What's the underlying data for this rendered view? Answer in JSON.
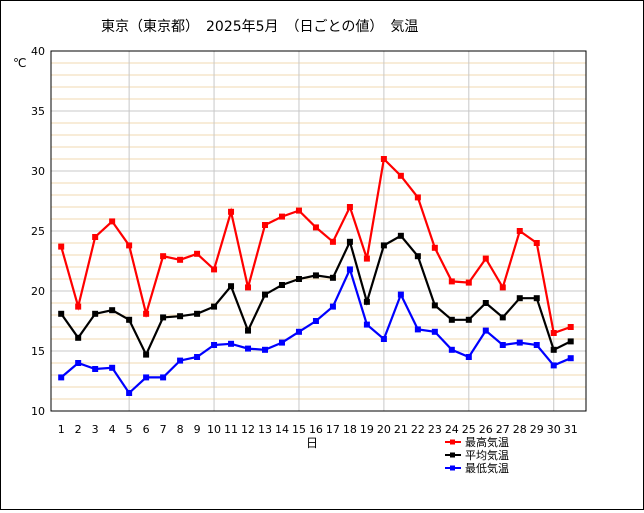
{
  "chart_data": {
    "type": "line",
    "title": "東京（東京都）　2025年5月　（日ごとの値）　気温",
    "ylabel": "℃",
    "xlabel": "日",
    "ylim": [
      10,
      40
    ],
    "yticks": [
      10,
      15,
      20,
      25,
      30,
      35,
      40
    ],
    "grid": true,
    "legend_position": "bottom-right",
    "x": [
      1,
      2,
      3,
      4,
      5,
      6,
      7,
      8,
      9,
      10,
      11,
      12,
      13,
      14,
      15,
      16,
      17,
      18,
      19,
      20,
      21,
      22,
      23,
      24,
      25,
      26,
      27,
      28,
      29,
      30,
      31
    ],
    "series": [
      {
        "name": "最高気温",
        "color": "#ff0000",
        "values": [
          23.7,
          18.7,
          24.5,
          25.8,
          23.8,
          18.1,
          22.9,
          22.6,
          23.1,
          21.8,
          26.6,
          20.3,
          25.5,
          26.2,
          26.7,
          25.3,
          24.1,
          27.0,
          22.7,
          31.0,
          29.6,
          27.8,
          23.6,
          20.8,
          20.7,
          22.7,
          20.3,
          25.0,
          24.0,
          16.5,
          17.0
        ]
      },
      {
        "name": "平均気温",
        "color": "#000000",
        "values": [
          18.1,
          16.1,
          18.1,
          18.4,
          17.6,
          14.7,
          17.8,
          17.9,
          18.1,
          18.7,
          20.4,
          16.7,
          19.7,
          20.5,
          21.0,
          21.3,
          21.1,
          24.1,
          19.1,
          23.8,
          24.6,
          22.9,
          18.8,
          17.6,
          17.6,
          19.0,
          17.8,
          19.4,
          19.4,
          15.1,
          15.8
        ]
      },
      {
        "name": "最低気温",
        "color": "#0000ff",
        "values": [
          12.8,
          14.0,
          13.5,
          13.6,
          11.5,
          12.8,
          12.8,
          14.2,
          14.5,
          15.5,
          15.6,
          15.2,
          15.1,
          15.7,
          16.6,
          17.5,
          18.7,
          21.8,
          17.2,
          16.0,
          19.7,
          16.8,
          16.6,
          15.1,
          14.5,
          16.7,
          15.5,
          15.7,
          15.5,
          13.8,
          14.4
        ]
      }
    ]
  }
}
